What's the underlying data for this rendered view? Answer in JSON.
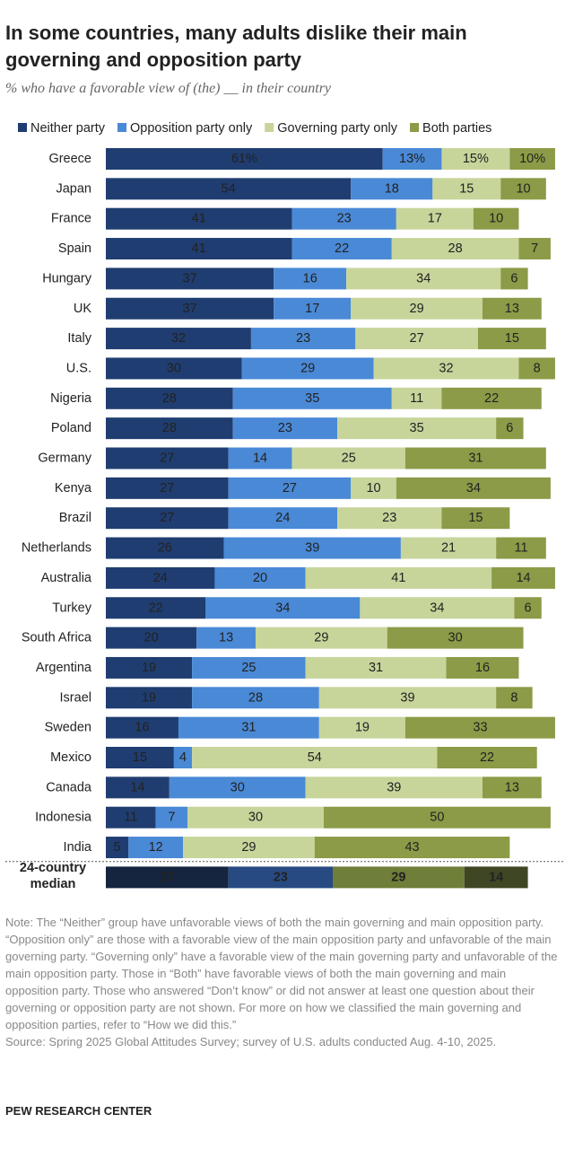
{
  "chart_data": {
    "type": "bar",
    "orientation": "horizontal",
    "stacked": true,
    "title": "In some countries, many adults dislike their main governing and opposition party",
    "subtitle": "% who have a favorable view of (the) __ in their country",
    "categories": [
      "Greece",
      "Japan",
      "France",
      "Spain",
      "Hungary",
      "UK",
      "Italy",
      "U.S.",
      "Nigeria",
      "Poland",
      "Germany",
      "Kenya",
      "Brazil",
      "Netherlands",
      "Australia",
      "Turkey",
      "South Africa",
      "Argentina",
      "Israel",
      "Sweden",
      "Mexico",
      "Canada",
      "Indonesia",
      "India"
    ],
    "series": [
      {
        "name": "Neither party",
        "color": "#1f3d70",
        "label_color": "#ffffff",
        "values": [
          61,
          54,
          41,
          41,
          37,
          37,
          32,
          30,
          28,
          28,
          27,
          27,
          27,
          26,
          24,
          22,
          20,
          19,
          19,
          16,
          15,
          14,
          11,
          5
        ],
        "value_labels": [
          "61%",
          "54",
          "41",
          "41",
          "37",
          "37",
          "32",
          "30",
          "28",
          "28",
          "27",
          "27",
          "27",
          "26",
          "24",
          "22",
          "20",
          "19",
          "19",
          "16",
          "15",
          "14",
          "11",
          "5"
        ]
      },
      {
        "name": "Opposition party only",
        "color": "#4a89d6",
        "label_color": "#ffffff",
        "values": [
          13,
          18,
          23,
          22,
          16,
          17,
          23,
          29,
          35,
          23,
          14,
          27,
          24,
          39,
          20,
          34,
          13,
          25,
          28,
          31,
          4,
          30,
          7,
          12
        ],
        "value_labels": [
          "13%",
          "18",
          "23",
          "22",
          "16",
          "17",
          "23",
          "29",
          "35",
          "23",
          "14",
          "27",
          "24",
          "39",
          "20",
          "34",
          "13",
          "25",
          "28",
          "31",
          "4",
          "30",
          "7",
          "12"
        ]
      },
      {
        "name": "Governing party only",
        "color": "#c7d59b",
        "label_color": "#222222",
        "values": [
          15,
          15,
          17,
          28,
          34,
          29,
          27,
          32,
          11,
          35,
          25,
          10,
          23,
          21,
          41,
          34,
          29,
          31,
          39,
          19,
          54,
          39,
          30,
          29
        ],
        "value_labels": [
          "15%",
          "15",
          "17",
          "28",
          "34",
          "29",
          "27",
          "32",
          "11",
          "35",
          "25",
          "10",
          "23",
          "21",
          "41",
          "34",
          "29",
          "31",
          "39",
          "19",
          "54",
          "39",
          "30",
          "29"
        ]
      },
      {
        "name": "Both parties",
        "color": "#8b9b47",
        "label_color": "#ffffff",
        "values": [
          10,
          10,
          10,
          7,
          6,
          13,
          15,
          8,
          22,
          6,
          31,
          34,
          15,
          11,
          14,
          6,
          30,
          16,
          8,
          33,
          22,
          13,
          50,
          43
        ],
        "value_labels": [
          "10%",
          "10",
          "10",
          "7",
          "6",
          "13",
          "15",
          "8",
          "22",
          "6",
          "31",
          "34",
          "15",
          "11",
          "14",
          "6",
          "30",
          "16",
          "8",
          "33",
          "22",
          "13",
          "50",
          "43"
        ]
      }
    ],
    "median": {
      "label": "24-country median",
      "values": [
        27,
        23,
        29,
        14
      ],
      "colors": [
        "#15253f",
        "#284a82",
        "#6f7e38",
        "#3f4624"
      ]
    },
    "note": "Note: The “Neither” group have unfavorable views of both the main governing and main opposition party. “Opposition only” are those with a favorable view of the main opposition party and unfavorable of the main governing party. “Governing only” have a favorable view of the main governing party and unfavorable of the main opposition party. Those in “Both” have favorable views of both the main governing and main opposition party. Those who answered “Don’t know” or did not answer at least one question about their governing or opposition party are not shown. For more on how we classified the main governing and opposition parties, refer to “How we did this.”",
    "source": "Source: Spring 2025 Global Attitudes Survey; survey of U.S. adults conducted Aug. 4-10, 2025.",
    "footer": "PEW RESEARCH CENTER"
  }
}
